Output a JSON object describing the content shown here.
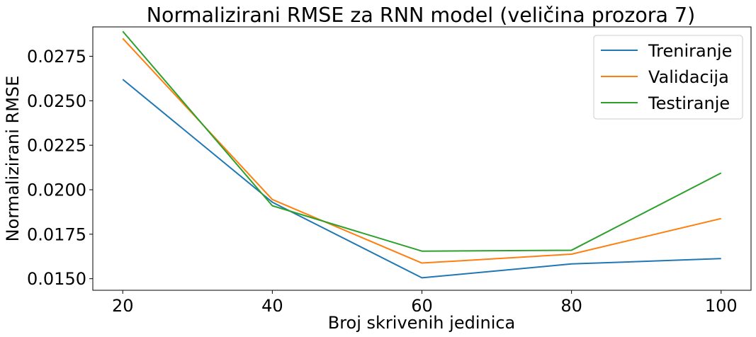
{
  "chart_data": {
    "type": "line",
    "title": "Normalizirani RMSE za RNN model (veličina prozora 7)",
    "xlabel": "Broj skrivenih jedinica",
    "ylabel": "Normalizirani RMSE",
    "x": [
      20,
      40,
      60,
      80,
      100
    ],
    "xticks": [
      "20",
      "40",
      "60",
      "80",
      "100"
    ],
    "yticks": [
      "0.0150",
      "0.0175",
      "0.0200",
      "0.0225",
      "0.0250",
      "0.0275"
    ],
    "ytick_values": [
      0.015,
      0.0175,
      0.02,
      0.0225,
      0.025,
      0.0275
    ],
    "xlim": [
      16,
      104
    ],
    "ylim": [
      0.01435,
      0.02915
    ],
    "grid": false,
    "legend_position": "top-right",
    "series": [
      {
        "name": "Treniranje",
        "color": "#1f77b4",
        "values": [
          0.0262,
          0.0193,
          0.01505,
          0.01583,
          0.01613
        ]
      },
      {
        "name": "Validacija",
        "color": "#ff7f0e",
        "values": [
          0.0285,
          0.01945,
          0.01588,
          0.01638,
          0.01838
        ]
      },
      {
        "name": "Testiranje",
        "color": "#2ca02c",
        "values": [
          0.0289,
          0.0191,
          0.01655,
          0.0166,
          0.02094
        ]
      }
    ]
  }
}
